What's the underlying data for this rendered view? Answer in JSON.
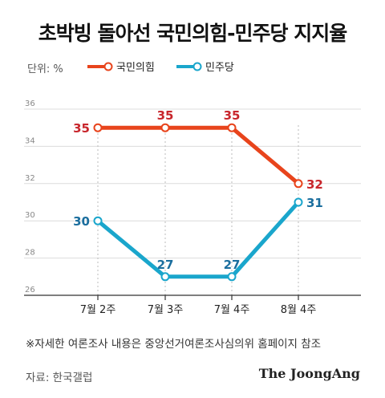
{
  "title": "초박빙 돌아선 국민의힘-민주당 지지율",
  "unit_label": "단위: %",
  "footnote": "※자세한 여론조사 내용은 중앙선거여론조사심의위 홈페이지 참조",
  "source": "자료: 한국갤럽",
  "logo": "The JoongAng",
  "colors": {
    "ppp": "#e8441c",
    "dp": "#1aa6cc",
    "axis": "#333333",
    "grid": "#dcdcdc",
    "ppp_label": "#c8262c",
    "dp_label": "#1b6e9e"
  },
  "chart_data": {
    "type": "line",
    "categories": [
      "7월 2주",
      "7월 3주",
      "7월 4주",
      "8월 4주"
    ],
    "series": [
      {
        "name": "국민의힘",
        "values": [
          35,
          35,
          35,
          32
        ]
      },
      {
        "name": "민주당",
        "values": [
          30,
          27,
          27,
          31
        ]
      }
    ],
    "yticks": [
      26,
      28,
      30,
      32,
      34,
      36
    ],
    "ylim": [
      26,
      36
    ],
    "grid": true,
    "legend": "top"
  }
}
